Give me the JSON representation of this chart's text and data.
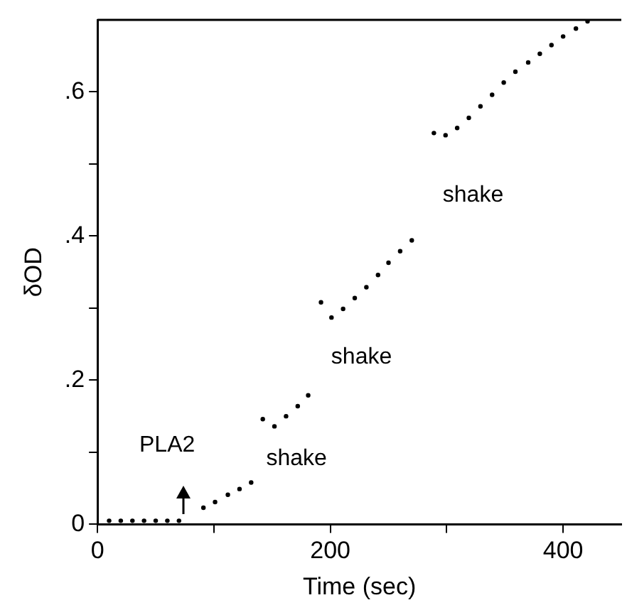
{
  "chart_data": {
    "type": "scatter",
    "xlabel": "Time (sec)",
    "ylabel": "δOD",
    "xlim": [
      0,
      450
    ],
    "ylim": [
      0,
      0.7
    ],
    "xticks": [
      0,
      {
        "value": 100,
        "label": null
      },
      200,
      {
        "value": 300,
        "label": null
      },
      400
    ],
    "yticks": [
      0,
      {
        "value": 0.1,
        "label": null
      },
      {
        "value": 0.2,
        "label": ".2"
      },
      {
        "value": 0.3,
        "label": null
      },
      {
        "value": 0.4,
        "label": ".4"
      },
      {
        "value": 0.5,
        "label": null
      },
      {
        "value": 0.6,
        "label": ".6"
      }
    ],
    "grid": false,
    "legend": false,
    "marker": "circle",
    "series": [
      {
        "color": "#000000",
        "x": [
          10,
          20,
          30,
          40,
          50,
          60,
          70,
          91,
          101,
          112,
          122,
          132,
          142,
          152,
          162,
          172,
          181,
          192,
          201,
          211,
          221,
          231,
          241,
          250,
          260,
          270,
          289,
          299,
          309,
          319,
          329,
          339,
          349,
          359,
          370,
          380,
          390,
          400,
          411,
          421
        ],
        "values": [
          0.005,
          0.005,
          0.005,
          0.005,
          0.005,
          0.005,
          0.005,
          0.023,
          0.031,
          0.041,
          0.049,
          0.058,
          0.146,
          0.136,
          0.15,
          0.164,
          0.179,
          0.308,
          0.287,
          0.299,
          0.314,
          0.329,
          0.346,
          0.363,
          0.379,
          0.394,
          0.543,
          0.54,
          0.55,
          0.564,
          0.58,
          0.596,
          0.613,
          0.628,
          0.641,
          0.653,
          0.665,
          0.677,
          0.688,
          0.698
        ]
      }
    ],
    "annotations": [
      "PLA2",
      "shake",
      "shake",
      "shake"
    ]
  }
}
